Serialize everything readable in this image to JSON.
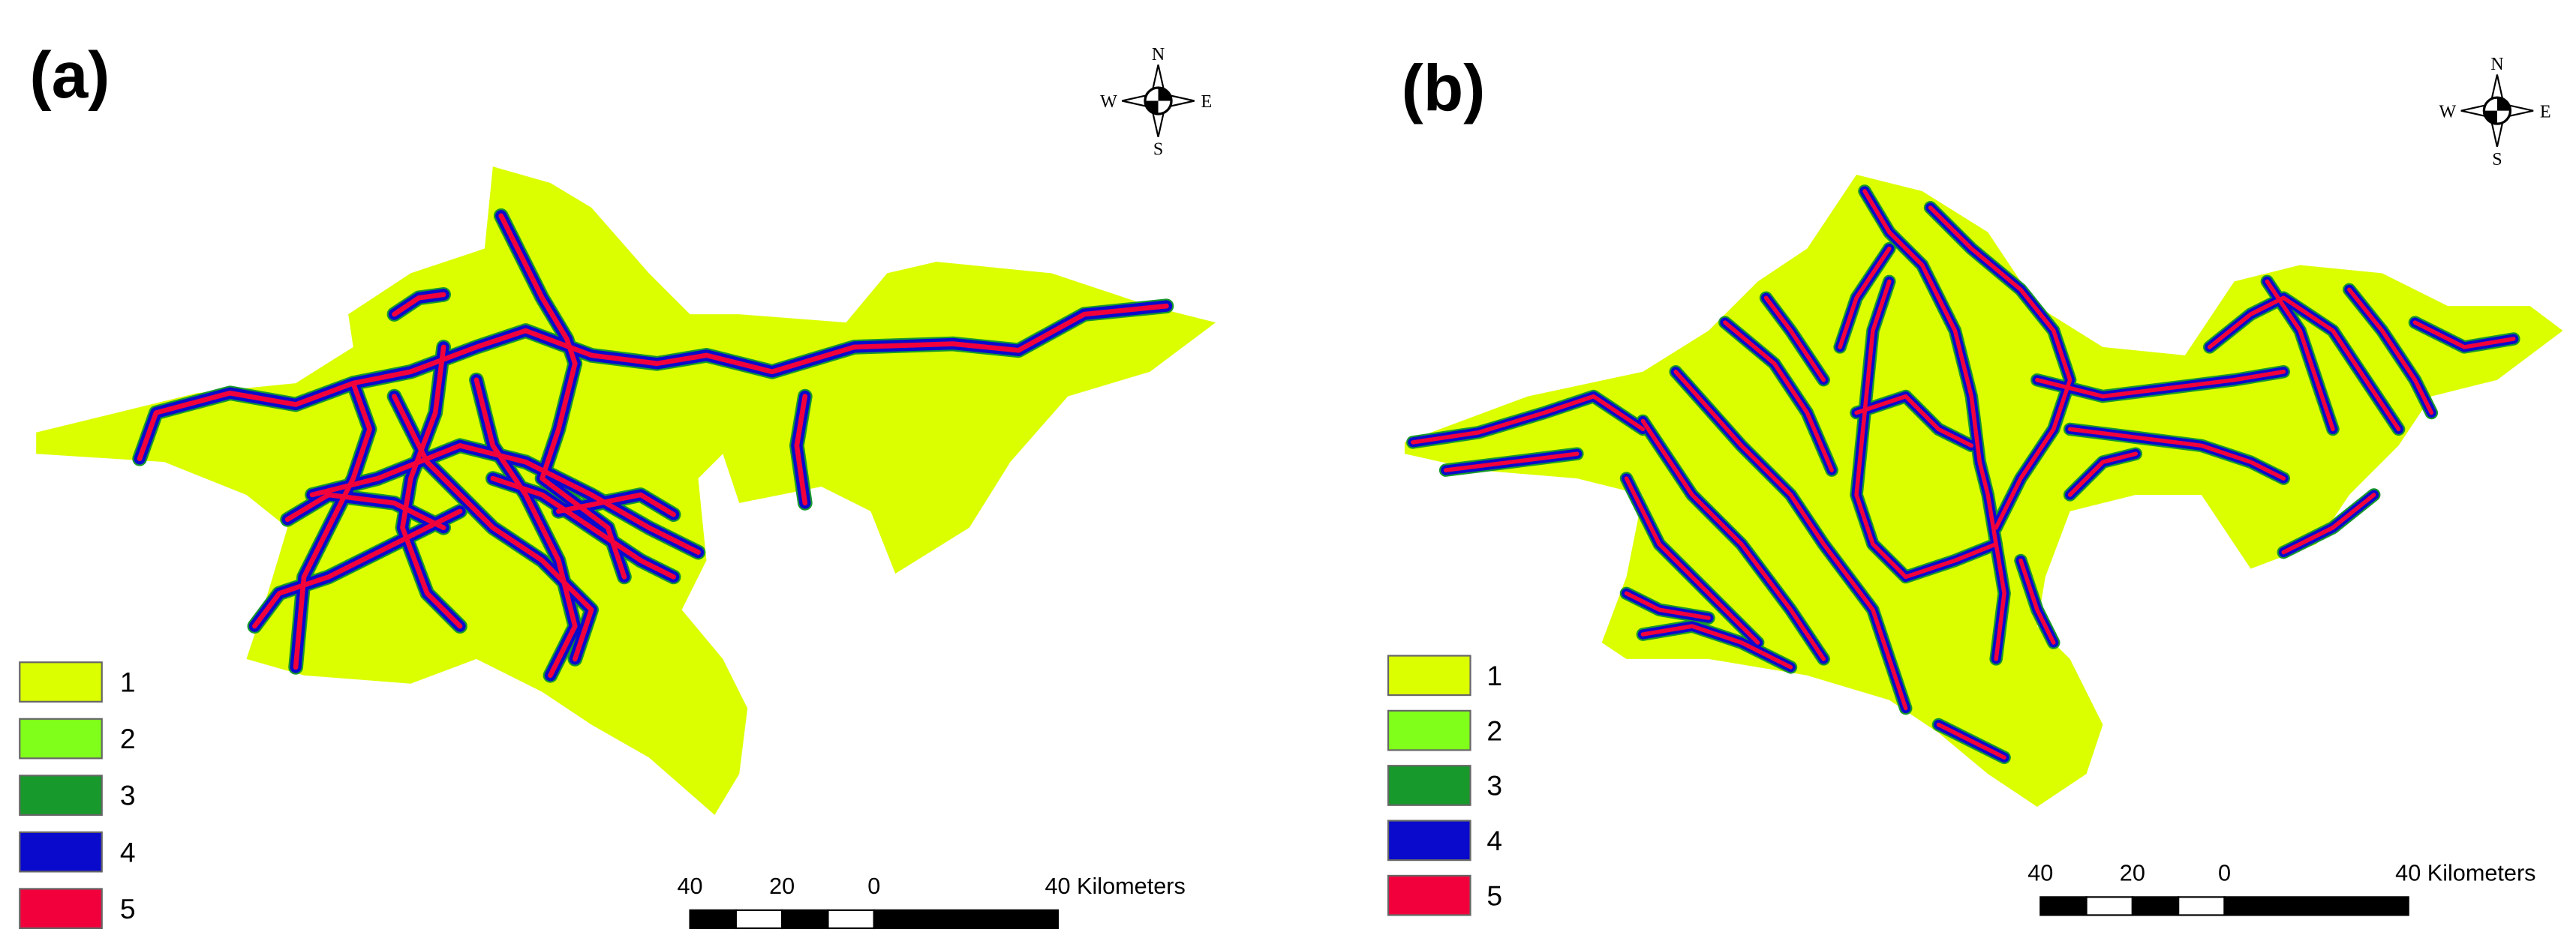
{
  "panels": [
    {
      "label": "(a)",
      "compass": {
        "n": "N",
        "e": "E",
        "s": "S",
        "w": "W"
      },
      "legend": [
        {
          "label": "1",
          "color": "#dcff00"
        },
        {
          "label": "2",
          "color": "#80ff1a"
        },
        {
          "label": "3",
          "color": "#17992c"
        },
        {
          "label": "4",
          "color": "#0a0acc"
        },
        {
          "label": "5",
          "color": "#f2003c"
        }
      ],
      "scale_bar": [
        "40",
        "20",
        "0",
        "40 Kilometers"
      ]
    },
    {
      "label": "(b)",
      "compass": {
        "n": "N",
        "e": "E",
        "s": "S",
        "w": "W"
      },
      "legend": [
        {
          "label": "1",
          "color": "#dcff00"
        },
        {
          "label": "2",
          "color": "#80ff1a"
        },
        {
          "label": "3",
          "color": "#17992c"
        },
        {
          "label": "4",
          "color": "#0a0acc"
        },
        {
          "label": "5",
          "color": "#f2003c"
        }
      ],
      "scale_bar": [
        "40",
        "20",
        "0",
        "40 Kilometers"
      ]
    }
  ]
}
